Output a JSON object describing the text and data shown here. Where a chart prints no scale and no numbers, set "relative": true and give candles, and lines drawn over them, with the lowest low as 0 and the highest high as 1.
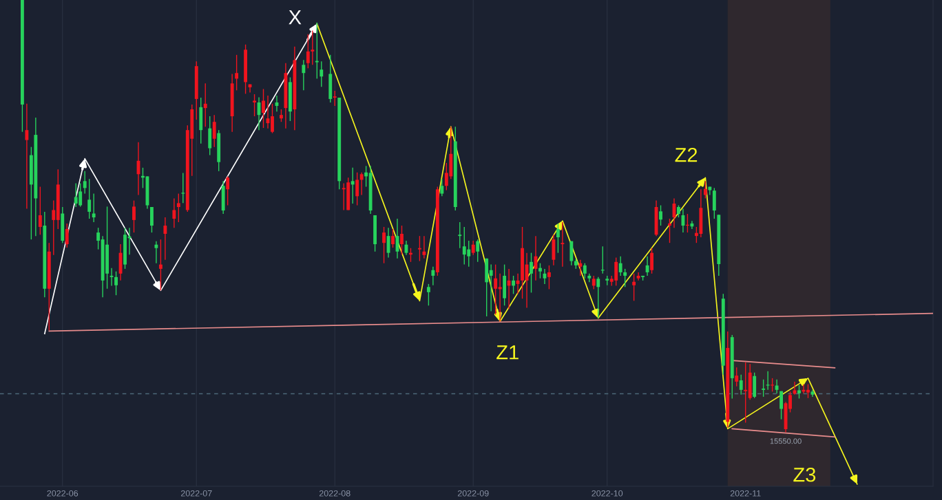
{
  "chart_data": {
    "type": "candlestick",
    "relative": true,
    "grid": "x",
    "xlim": [
      "2022-05-18",
      "2022-12-13"
    ],
    "xticks": [
      {
        "value": "2022-06-01",
        "label": "2022-06"
      },
      {
        "value": "2022-07-01",
        "label": "2022-07"
      },
      {
        "value": "2022-08-01",
        "label": "2022-08"
      },
      {
        "value": "2022-09-01",
        "label": "2022-09"
      },
      {
        "value": "2022-10-01",
        "label": "2022-10"
      },
      {
        "value": "2022-11-01",
        "label": "2022-11"
      }
    ],
    "x": [
      "2022-05-23",
      "2022-05-24",
      "2022-05-25",
      "2022-05-26",
      "2022-05-27",
      "2022-05-28",
      "2022-05-29",
      "2022-05-30",
      "2022-05-31",
      "2022-06-01",
      "2022-06-02",
      "2022-06-04",
      "2022-06-05",
      "2022-06-06",
      "2022-06-07",
      "2022-06-08",
      "2022-06-09",
      "2022-06-10",
      "2022-06-11",
      "2022-06-12",
      "2022-06-13",
      "2022-06-14",
      "2022-06-15",
      "2022-06-16",
      "2022-06-17",
      "2022-06-18",
      "2022-06-19",
      "2022-06-20",
      "2022-06-21",
      "2022-06-22",
      "2022-06-23",
      "2022-06-24",
      "2022-06-26",
      "2022-06-27",
      "2022-06-28",
      "2022-06-29",
      "2022-06-30",
      "2022-07-01",
      "2022-07-02",
      "2022-07-03",
      "2022-07-04",
      "2022-07-05",
      "2022-07-06",
      "2022-07-07",
      "2022-07-08",
      "2022-07-09",
      "2022-07-10",
      "2022-07-12",
      "2022-07-13",
      "2022-07-14",
      "2022-07-15",
      "2022-07-16",
      "2022-07-17",
      "2022-07-18",
      "2022-07-19",
      "2022-07-20",
      "2022-07-21",
      "2022-07-22",
      "2022-07-23",
      "2022-07-25",
      "2022-07-26",
      "2022-07-27",
      "2022-07-28",
      "2022-07-29",
      "2022-07-31",
      "2022-08-01",
      "2022-08-02",
      "2022-08-03",
      "2022-08-04",
      "2022-08-05",
      "2022-08-06",
      "2022-08-07",
      "2022-08-08",
      "2022-08-09",
      "2022-08-10",
      "2022-08-12",
      "2022-08-13",
      "2022-08-14",
      "2022-08-15",
      "2022-08-16",
      "2022-08-17",
      "2022-08-18",
      "2022-08-20",
      "2022-08-21",
      "2022-08-22",
      "2022-08-23",
      "2022-08-24",
      "2022-08-25",
      "2022-08-26",
      "2022-08-27",
      "2022-08-28",
      "2022-08-29",
      "2022-08-30",
      "2022-08-31",
      "2022-09-01",
      "2022-09-02",
      "2022-09-04",
      "2022-09-05",
      "2022-09-06",
      "2022-09-07",
      "2022-09-08",
      "2022-09-09",
      "2022-09-10",
      "2022-09-11",
      "2022-09-12",
      "2022-09-13",
      "2022-09-14",
      "2022-09-15",
      "2022-09-16",
      "2022-09-17",
      "2022-09-18",
      "2022-09-19",
      "2022-09-20",
      "2022-09-21",
      "2022-09-23",
      "2022-09-24",
      "2022-09-25",
      "2022-09-26",
      "2022-09-27",
      "2022-09-28",
      "2022-09-29",
      "2022-09-30",
      "2022-10-01",
      "2022-10-02",
      "2022-10-03",
      "2022-10-04",
      "2022-10-05",
      "2022-10-07",
      "2022-10-08",
      "2022-10-09",
      "2022-10-10",
      "2022-10-11",
      "2022-10-12",
      "2022-10-13",
      "2022-10-15",
      "2022-10-16",
      "2022-10-17",
      "2022-10-18",
      "2022-10-19",
      "2022-10-20",
      "2022-10-21",
      "2022-10-22",
      "2022-10-23",
      "2022-10-24",
      "2022-10-25",
      "2022-10-26",
      "2022-10-27",
      "2022-10-28",
      "2022-10-29",
      "2022-10-30",
      "2022-10-31",
      "2022-11-01",
      "2022-11-02",
      "2022-11-03",
      "2022-11-05",
      "2022-11-06",
      "2022-11-07",
      "2022-11-08",
      "2022-11-09",
      "2022-11-10",
      "2022-11-11",
      "2022-11-12",
      "2022-11-13",
      "2022-11-14",
      "2022-11-15",
      "2022-11-16"
    ],
    "ohlc": [
      [
        1,
        1,
        0.695,
        0.758
      ],
      [
        0.676,
        0.76,
        0.517,
        0.699
      ],
      [
        0.641,
        0.66,
        0.446,
        0.573
      ],
      [
        0.688,
        0.728,
        0.454,
        0.541
      ],
      [
        0.475,
        0.568,
        0.457,
        0.502
      ],
      [
        0.478,
        0.51,
        0.312,
        0.332
      ],
      [
        0.332,
        0.438,
        0.236,
        0.418
      ],
      [
        0.491,
        0.536,
        0.41,
        0.514
      ],
      [
        0.491,
        0.608,
        0.47,
        0.573
      ],
      [
        0.506,
        0.521,
        0.438,
        0.443
      ],
      [
        0.435,
        0.483,
        0.427,
        0.47
      ],
      [
        0.544,
        0.576,
        0.521,
        0.529
      ],
      [
        0.557,
        0.576,
        0.522,
        0.525
      ],
      [
        0.581,
        0.604,
        0.552,
        0.565
      ],
      [
        0.538,
        0.586,
        0.494,
        0.51
      ],
      [
        0.506,
        0.552,
        0.486,
        0.497
      ],
      [
        0.462,
        0.473,
        0.423,
        0.443
      ],
      [
        0.446,
        0.454,
        0.312,
        0.351
      ],
      [
        0.434,
        0.522,
        0.332,
        0.367
      ],
      [
        0.362,
        0.38,
        0.339,
        0.359
      ],
      [
        0.359,
        0.372,
        0.317,
        0.34
      ],
      [
        0.367,
        0.435,
        0.351,
        0.415
      ],
      [
        0.457,
        0.473,
        0.378,
        0.388
      ],
      [
        0.453,
        0.473,
        0.411,
        0.449
      ],
      [
        0.491,
        0.536,
        0.462,
        0.522
      ],
      [
        0.597,
        0.671,
        0.549,
        0.628
      ],
      [
        0.593,
        0.612,
        0.565,
        0.589
      ],
      [
        0.592,
        0.592,
        0.517,
        0.525
      ],
      [
        0.521,
        0.521,
        0.462,
        0.478
      ],
      [
        0.434,
        0.442,
        0.391,
        0.426
      ],
      [
        0.378,
        0.446,
        0.328,
        0.388
      ],
      [
        0.459,
        0.497,
        0.399,
        0.478
      ],
      [
        0.494,
        0.541,
        0.473,
        0.514
      ],
      [
        0.521,
        0.552,
        0.486,
        0.53
      ],
      [
        0.554,
        0.6,
        0.53,
        0.552
      ],
      [
        0.514,
        0.71,
        0.51,
        0.699
      ],
      [
        0.679,
        0.758,
        0.593,
        0.747
      ],
      [
        0.771,
        0.858,
        0.723,
        0.847
      ],
      [
        0.752,
        0.774,
        0.668,
        0.699
      ],
      [
        0.75,
        0.807,
        0.707,
        0.76
      ],
      [
        0.703,
        0.731,
        0.641,
        0.657
      ],
      [
        0.679,
        0.734,
        0.66,
        0.718
      ],
      [
        0.692,
        0.699,
        0.604,
        0.625
      ],
      [
        0.57,
        0.581,
        0.505,
        0.513
      ],
      [
        0.562,
        0.592,
        0.525,
        0.589
      ],
      [
        0.731,
        0.829,
        0.695,
        0.807
      ],
      [
        0.818,
        0.873,
        0.791,
        0.831
      ],
      [
        0.81,
        0.897,
        0.783,
        0.885
      ],
      [
        0.798,
        0.805,
        0.786,
        0.805
      ],
      [
        0.763,
        0.782,
        0.731,
        0.767
      ],
      [
        0.763,
        0.775,
        0.699,
        0.734
      ],
      [
        0.739,
        0.794,
        0.704,
        0.767
      ],
      [
        0.715,
        0.779,
        0.703,
        0.726
      ],
      [
        0.695,
        0.76,
        0.692,
        0.731
      ],
      [
        0.763,
        0.779,
        0.742,
        0.755
      ],
      [
        0.726,
        0.747,
        0.718,
        0.734
      ],
      [
        0.75,
        0.854,
        0.703,
        0.831
      ],
      [
        0.81,
        0.821,
        0.72,
        0.742
      ],
      [
        0.747,
        0.892,
        0.699,
        0.861
      ],
      [
        0.85,
        0.861,
        0.791,
        0.831
      ],
      [
        0.854,
        0.921,
        0.842,
        0.881
      ],
      [
        0.881,
        0.929,
        0.85,
        0.885
      ],
      [
        0.859,
        0.948,
        0.818,
        0.856
      ],
      [
        0.839,
        0.858,
        0.799,
        0.823
      ],
      [
        0.829,
        0.873,
        0.763,
        0.771
      ],
      [
        0.774,
        0.79,
        0.755,
        0.777
      ],
      [
        0.774,
        0.774,
        0.562,
        0.581
      ],
      [
        0.562,
        0.576,
        0.514,
        0.565
      ],
      [
        0.514,
        0.589,
        0.514,
        0.578
      ],
      [
        0.581,
        0.612,
        0.529,
        0.573
      ],
      [
        0.546,
        0.601,
        0.525,
        0.584
      ],
      [
        0.584,
        0.601,
        0.549,
        0.597
      ],
      [
        0.601,
        0.616,
        0.568,
        0.592
      ],
      [
        0.6,
        0.616,
        0.505,
        0.513
      ],
      [
        0.502,
        0.502,
        0.418,
        0.435
      ],
      [
        0.438,
        0.475,
        0.391,
        0.462
      ],
      [
        0.454,
        0.473,
        0.404,
        0.415
      ],
      [
        0.435,
        0.47,
        0.427,
        0.454
      ],
      [
        0.454,
        0.494,
        0.402,
        0.418
      ],
      [
        0.435,
        0.478,
        0.411,
        0.459
      ],
      [
        0.434,
        0.443,
        0.41,
        0.415
      ],
      [
        0.411,
        0.426,
        0.394,
        0.415
      ],
      [
        0.423,
        0.454,
        0.396,
        0.426
      ],
      [
        0.41,
        0.454,
        0.402,
        0.418
      ],
      [
        0.336,
        0.343,
        0.293,
        0.324
      ],
      [
        0.375,
        0.383,
        0.34,
        0.362
      ],
      [
        0.37,
        0.568,
        0.362,
        0.562
      ],
      [
        0.57,
        0.586,
        0.546,
        0.552
      ],
      [
        0.57,
        0.623,
        0.56,
        0.6
      ],
      [
        0.592,
        0.707,
        0.586,
        0.644
      ],
      [
        0.673,
        0.707,
        0.513,
        0.521
      ],
      [
        0.457,
        0.486,
        0.426,
        0.454
      ],
      [
        0.43,
        0.475,
        0.388,
        0.411
      ],
      [
        0.423,
        0.443,
        0.383,
        0.407
      ],
      [
        0.415,
        0.443,
        0.41,
        0.434
      ],
      [
        0.442,
        0.446,
        0.394,
        0.418
      ],
      [
        0.402,
        0.402,
        0.268,
        0.347
      ],
      [
        0.375,
        0.388,
        0.28,
        0.362
      ],
      [
        0.332,
        0.388,
        0.272,
        0.356
      ],
      [
        0.331,
        0.367,
        0.256,
        0.336
      ],
      [
        0.362,
        0.388,
        0.293,
        0.31
      ],
      [
        0.339,
        0.378,
        0.285,
        0.351
      ],
      [
        0.351,
        0.362,
        0.32,
        0.339
      ],
      [
        0.343,
        0.367,
        0.32,
        0.351
      ],
      [
        0.351,
        0.475,
        0.309,
        0.426
      ],
      [
        0.351,
        0.415,
        0.288,
        0.388
      ],
      [
        0.394,
        0.415,
        0.323,
        0.367
      ],
      [
        0.378,
        0.454,
        0.351,
        0.407
      ],
      [
        0.38,
        0.391,
        0.356,
        0.372
      ],
      [
        0.367,
        0.378,
        0.343,
        0.356
      ],
      [
        0.359,
        0.386,
        0.331,
        0.37
      ],
      [
        0.399,
        0.457,
        0.386,
        0.446
      ],
      [
        0.47,
        0.483,
        0.415,
        0.451
      ],
      [
        0.435,
        0.486,
        0.383,
        0.438
      ],
      [
        0.442,
        0.442,
        0.386,
        0.396
      ],
      [
        0.396,
        0.402,
        0.378,
        0.386
      ],
      [
        0.383,
        0.399,
        0.362,
        0.391
      ],
      [
        0.386,
        0.391,
        0.356,
        0.367
      ],
      [
        0.362,
        0.367,
        0.347,
        0.356
      ],
      [
        0.339,
        0.362,
        0.331,
        0.355
      ],
      [
        0.355,
        0.359,
        0.264,
        0.336
      ],
      [
        0.375,
        0.43,
        0.367,
        0.374
      ],
      [
        0.355,
        0.362,
        0.34,
        0.351
      ],
      [
        0.348,
        0.362,
        0.339,
        0.355
      ],
      [
        0.351,
        0.404,
        0.339,
        0.394
      ],
      [
        0.391,
        0.407,
        0.362,
        0.37
      ],
      [
        0.37,
        0.378,
        0.336,
        0.362
      ],
      [
        0.34,
        0.367,
        0.304,
        0.348
      ],
      [
        0.356,
        0.37,
        0.351,
        0.362
      ],
      [
        0.362,
        0.362,
        0.351,
        0.359
      ],
      [
        0.386,
        0.407,
        0.362,
        0.37
      ],
      [
        0.375,
        0.426,
        0.367,
        0.415
      ],
      [
        0.457,
        0.536,
        0.454,
        0.521
      ],
      [
        0.511,
        0.525,
        0.478,
        0.492
      ],
      [
        0.478,
        0.494,
        0.438,
        0.483
      ],
      [
        0.497,
        0.541,
        0.473,
        0.529
      ],
      [
        0.521,
        0.525,
        0.497,
        0.505
      ],
      [
        0.502,
        0.517,
        0.462,
        0.478
      ],
      [
        0.478,
        0.505,
        0.462,
        0.479
      ],
      [
        0.483,
        0.489,
        0.47,
        0.476
      ],
      [
        0.454,
        0.475,
        0.438,
        0.461
      ],
      [
        0.459,
        0.562,
        0.451,
        0.519
      ],
      [
        0.549,
        0.581,
        0.541,
        0.563
      ],
      [
        0.568,
        0.568,
        0.549,
        0.56
      ],
      [
        0.559,
        0.565,
        0.494,
        0.513
      ],
      [
        0.503,
        0.503,
        0.362,
        0.389
      ],
      [
        0.309,
        0.32,
        0.133,
        0.154
      ],
      [
        0.024,
        0.233,
        0.011,
        0.195
      ],
      [
        0.22,
        0.225,
        0.078,
        0.125
      ],
      [
        0.117,
        0.15,
        0.106,
        0.131
      ],
      [
        0.12,
        0.133,
        0.087,
        0.098
      ],
      [
        0.095,
        0.162,
        0.022,
        0.098
      ],
      [
        0.079,
        0.158,
        0.075,
        0.138
      ],
      [
        0.13,
        0.138,
        0.079,
        0.082
      ],
      [
        0.101,
        0.122,
        0.082,
        0.098
      ],
      [
        0.109,
        0.141,
        0.098,
        0.108
      ],
      [
        0.108,
        0.125,
        0.094,
        0.109
      ],
      [
        0.108,
        0.122,
        0.09,
        0.098
      ],
      [
        0.095,
        0.095,
        0.03,
        0.054
      ],
      [
        0.007,
        0.07,
        0,
        0.067
      ],
      [
        0.054,
        0.094,
        0.046,
        0.086
      ],
      [
        0.089,
        0.117,
        0.087,
        0.097
      ],
      [
        0.097,
        0.109,
        0.078,
        0.09
      ],
      [
        0.094,
        0.111,
        0.09,
        0.098
      ],
      [
        0.092,
        0.111,
        0.079,
        0.098
      ],
      [
        0.094,
        0.098,
        0.082,
        0.087
      ]
    ],
    "colors": [
      "#27d35c",
      "#f0141e",
      "#27d35c",
      "#27d35c",
      "#f0141e",
      "#27d35c",
      "#f0141e",
      "#f0141e",
      "#f0141e",
      "#27d35c",
      "#f0141e",
      "#27d35c",
      "#27d35c",
      "#27d35c",
      "#27d35c",
      "#27d35c",
      "#27d35c",
      "#27d35c",
      "#27d35c",
      "#27d35c",
      "#27d35c",
      "#f0141e",
      "#27d35c",
      "#27d35c",
      "#f0141e",
      "#f0141e",
      "#27d35c",
      "#27d35c",
      "#27d35c",
      "#27d35c",
      "#f0141e",
      "#f0141e",
      "#f0141e",
      "#f0141e",
      "#27d35c",
      "#f0141e",
      "#f0141e",
      "#f0141e",
      "#27d35c",
      "#f0141e",
      "#27d35c",
      "#f0141e",
      "#27d35c",
      "#27d35c",
      "#f0141e",
      "#f0141e",
      "#f0141e",
      "#f0141e",
      "#f0141e",
      "#f0141e",
      "#27d35c",
      "#f0141e",
      "#f0141e",
      "#f0141e",
      "#27d35c",
      "#f0141e",
      "#f0141e",
      "#27d35c",
      "#f0141e",
      "#27d35c",
      "#f0141e",
      "#f0141e",
      "#27d35c",
      "#27d35c",
      "#27d35c",
      "#f0141e",
      "#27d35c",
      "#f0141e",
      "#f0141e",
      "#27d35c",
      "#f0141e",
      "#f0141e",
      "#27d35c",
      "#27d35c",
      "#27d35c",
      "#f0141e",
      "#27d35c",
      "#f0141e",
      "#27d35c",
      "#f0141e",
      "#27d35c",
      "#f0141e",
      "#f0141e",
      "#f0141e",
      "#27d35c",
      "#27d35c",
      "#f0141e",
      "#27d35c",
      "#f0141e",
      "#f0141e",
      "#27d35c",
      "#27d35c",
      "#27d35c",
      "#27d35c",
      "#f0141e",
      "#27d35c",
      "#27d35c",
      "#27d35c",
      "#f0141e",
      "#f0141e",
      "#27d35c",
      "#f0141e",
      "#27d35c",
      "#f0141e",
      "#f0141e",
      "#f0141e",
      "#27d35c",
      "#f0141e",
      "#27d35c",
      "#27d35c",
      "#f0141e",
      "#f0141e",
      "#27d35c",
      "#f0141e",
      "#27d35c",
      "#27d35c",
      "#f0141e",
      "#27d35c",
      "#27d35c",
      "#f0141e",
      "#27d35c",
      "#27d35c",
      "#27d35c",
      "#f0141e",
      "#f0141e",
      "#27d35c",
      "#27d35c",
      "#f0141e",
      "#f0141e",
      "#27d35c",
      "#27d35c",
      "#f0141e",
      "#f0141e",
      "#27d35c",
      "#f0141e",
      "#f0141e",
      "#27d35c",
      "#27d35c",
      "#f0141e",
      "#27d35c",
      "#f0141e",
      "#f0141e",
      "#f0141e",
      "#27d35c",
      "#27d35c",
      "#27d35c",
      "#27d35c",
      "#f0141e",
      "#27d35c",
      "#f0141e",
      "#27d35c",
      "#f0141e",
      "#f0141e",
      "#27d35c",
      "#27d35c",
      "#27d35c",
      "#f0141e",
      "#27d35c",
      "#27d35c",
      "#f0141e",
      "#f0141e",
      "#f0141e",
      "#27d35c",
      "#f0141e",
      "#f0141e",
      "#27d35c"
    ],
    "series": [
      {
        "type": "line",
        "color": "#ffffff",
        "x": [
          "2022-05-28",
          "2022-06-06",
          "2022-06-23",
          "2022-07-28"
        ],
        "values": [
          0.228,
          0.633,
          0.328,
          0.945
        ]
      },
      {
        "type": "line",
        "color": "#f5f51e",
        "x": [
          "2022-07-28",
          "2022-08-20",
          "2022-08-27",
          "2022-09-07",
          "2022-09-21",
          "2022-09-29",
          "2022-10-23",
          "2022-10-28",
          "2022-11-15",
          "2022-11-26"
        ],
        "values": [
          0.945,
          0.304,
          0.707,
          0.256,
          0.489,
          0.264,
          0.589,
          0.008,
          0.125,
          -0.12
        ]
      },
      {
        "type": "line",
        "color": "#e88c8c",
        "x": [
          "2022-05-29",
          "2022-12-13"
        ],
        "values": [
          0.234,
          0.275
        ]
      },
      {
        "type": "line",
        "color": "#e88c8c",
        "x": [
          "2022-10-29",
          "2022-11-21"
        ],
        "values": [
          0.166,
          0.149
        ]
      },
      {
        "type": "line",
        "color": "#e88c8c",
        "x": [
          "2022-10-29",
          "2022-11-21"
        ],
        "values": [
          0.008,
          -0.011
        ]
      }
    ],
    "bands": [
      {
        "axis": "x",
        "from": "2022-10-28",
        "to": "2022-11-20",
        "color": "#2f282e"
      }
    ],
    "ref_lines": [
      {
        "axis": "y",
        "value": 0.089,
        "color": "#4d6a7a",
        "line_style": "dashed"
      }
    ],
    "annotations": [
      {
        "text": "X",
        "x": "2022-07-28",
        "y": 0.945
      },
      {
        "text": "Z1",
        "x": "2022-09-07",
        "y": 0.256
      },
      {
        "text": "Z2",
        "x": "2022-10-23",
        "y": 0.589
      },
      {
        "text": "Z3",
        "x": "2022-11-26",
        "y": -0.12
      },
      {
        "text": "15550.00",
        "x": "2022-11-10",
        "y": 0
      }
    ]
  }
}
